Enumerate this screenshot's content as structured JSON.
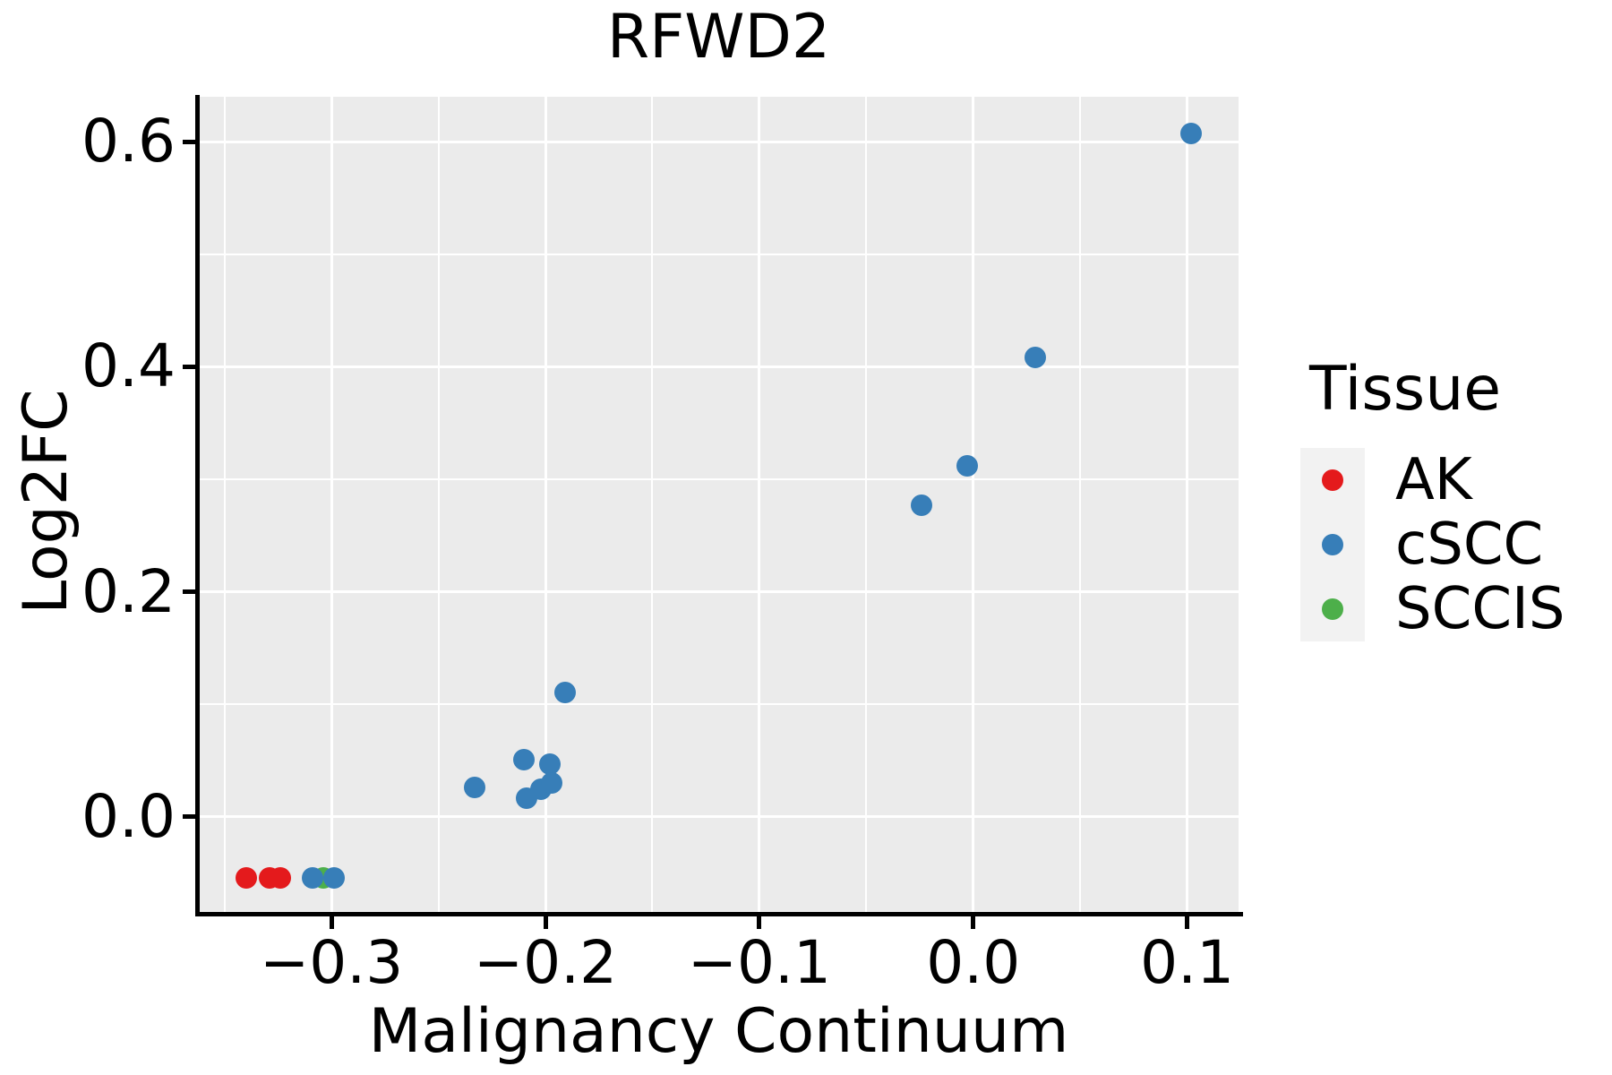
{
  "title": "RFWD2",
  "x_axis": {
    "label": "Malignancy Continuum",
    "ticks": [
      "−0.3",
      "−0.2",
      "−0.1",
      "0.0",
      "0.1"
    ]
  },
  "y_axis": {
    "label": "Log2FC",
    "ticks": [
      "0.0",
      "0.2",
      "0.4",
      "0.6"
    ]
  },
  "legend": {
    "title": "Tissue",
    "items": [
      {
        "label": "AK",
        "color": "#E41A1C"
      },
      {
        "label": "cSCC",
        "color": "#377EB8"
      },
      {
        "label": "SCCIS",
        "color": "#4DAF4A"
      }
    ]
  },
  "colors": {
    "panel_background": "#EBEBEB",
    "gridline": "#FFFFFF",
    "axis_line": "#000000",
    "legend_key_background": "#F2F2F2",
    "ak_red": "#E41A1C",
    "cscc_blue": "#377EB8",
    "sccis_green": "#4DAF4A"
  },
  "chart_data": {
    "type": "scatter",
    "title": "RFWD2",
    "xlabel": "Malignancy Continuum",
    "ylabel": "Log2FC",
    "xlim": [
      -0.362,
      0.124
    ],
    "ylim": [
      -0.086,
      0.64
    ],
    "x_major_breaks": [
      -0.3,
      -0.2,
      -0.1,
      0.0,
      0.1
    ],
    "x_minor_breaks": [
      -0.35,
      -0.25,
      -0.15,
      -0.05,
      0.05
    ],
    "y_major_breaks": [
      0.0,
      0.2,
      0.4,
      0.6
    ],
    "y_minor_breaks": [
      0.1,
      0.3,
      0.5
    ],
    "grid": true,
    "legend_title": "Tissue",
    "legend_position": "right",
    "series": [
      {
        "name": "AK",
        "color": "#E41A1C",
        "points": [
          [
            -0.34,
            -0.054
          ],
          [
            -0.329,
            -0.054
          ],
          [
            -0.324,
            -0.054
          ]
        ]
      },
      {
        "name": "SCCIS",
        "color": "#4DAF4A",
        "points": [
          [
            -0.304,
            -0.054
          ]
        ]
      },
      {
        "name": "cSCC",
        "color": "#377EB8",
        "points": [
          [
            -0.309,
            -0.054
          ],
          [
            -0.299,
            -0.054
          ],
          [
            -0.233,
            0.026
          ],
          [
            -0.21,
            0.051
          ],
          [
            -0.209,
            0.017
          ],
          [
            -0.202,
            0.025
          ],
          [
            -0.198,
            0.047
          ],
          [
            -0.197,
            0.03
          ],
          [
            -0.191,
            0.111
          ],
          [
            -0.024,
            0.277
          ],
          [
            -0.003,
            0.312
          ],
          [
            0.029,
            0.408
          ],
          [
            0.102,
            0.607
          ]
        ]
      }
    ]
  }
}
